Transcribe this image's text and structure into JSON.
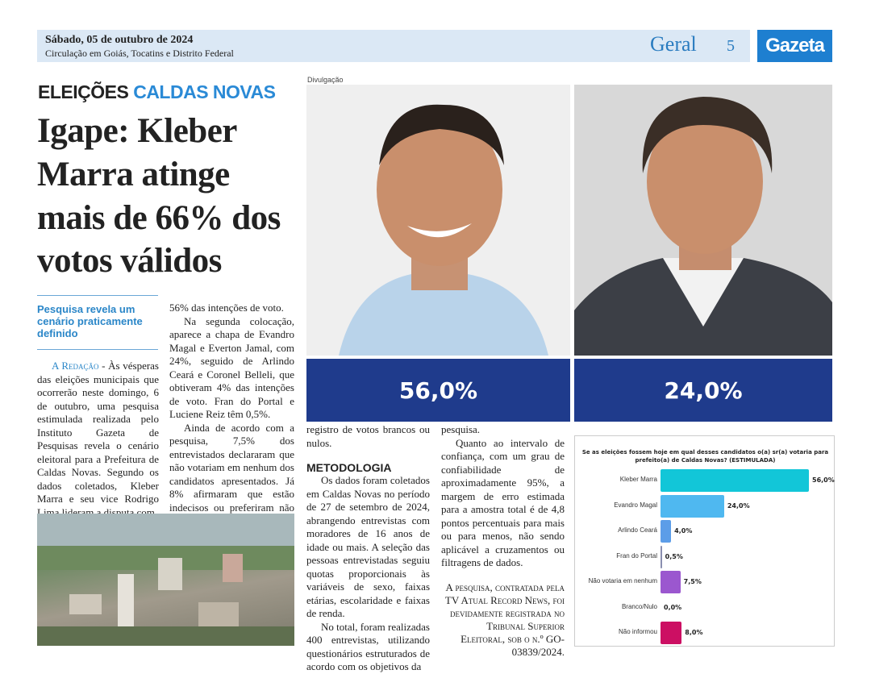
{
  "header": {
    "date": "Sábado, 05 de outubro de 2024",
    "circulation": "Circulação em Goiás, Tocatins e Distrito Federal",
    "section": "Geral",
    "page": "5",
    "logo": "Gazeta"
  },
  "article": {
    "kicker_a": "ELEIÇÕES",
    "kicker_b": "CALDAS NOVAS",
    "headline": "Igape: Kleber Marra atinge mais de 66% dos votos válidos",
    "photo_credit": "Divulgação",
    "percent_left": "56,0%",
    "percent_right": "24,0%",
    "subhead": "Pesquisa revela um cenário praticamente definido",
    "byline": "A Redação",
    "col1": " - Às vésperas das eleições municipais que ocorrerão neste domingo, 6 de outubro, uma pesquisa estimulada realizada pelo Instituto Gazeta de Pesquisas revela o cenário eleitoral para a Prefeitura de Caldas Novas. Segundo os dados coletados, Kleber Marra e seu vice Rodrigo Lima lideram a disputa com",
    "col2": [
      "56% das intenções de voto.",
      "Na segunda colocação, aparece a chapa de Evandro Magal e Everton Jamal, com 24%, seguido de Arlindo Ceará e Coronel Belleli, que obtiveram 4% das intenções de voto. Fran do Portal e Luciene Reiz têm 0,5%.",
      "Ainda de acordo com a pesquisa, 7,5% dos entrevistados declararam que não votariam em nenhum dos candidatos apresentados. Já 8% afirmaram que estão indecisos ou preferiram não responder à pesquisa. Não houve"
    ],
    "col3": [
      "registro de votos brancos ou nulos.",
      "METODOLOGIA",
      "Os dados foram coletados em Caldas Novas no período de 27 de setembro de 2024, abrangendo entrevistas com moradores de 16 anos de idade ou mais. A seleção das pessoas entrevistadas seguiu quotas proporcionais às variáveis de sexo, faixas etárias, escolaridade e faixas de renda.",
      "No total, foram realizadas 400 entrevistas, utilizando questionários estruturados de acordo com os objetivos da"
    ],
    "col4": [
      "pesquisa.",
      "Quanto ao intervalo de confiança, com um grau de confiabilidade de aproximadamente 95%, a margem de erro estimada para a amostra total é de 4,8 pontos percentuais para mais ou para menos, não sendo aplicável a cruzamentos ou filtragens de dados.",
      "A pesquisa, contratada pela TV Atual Record News, foi devidamente registrada no Tribunal Superior Eleitoral, sob o n.º GO-03839/2024."
    ]
  },
  "chart_data": {
    "type": "bar",
    "orientation": "horizontal",
    "title": "Se as eleições fossem hoje em qual desses candidatos o(a) sr(a) votaria para prefeito(a) de Caldas Novas? (ESTIMULADA)",
    "categories": [
      "Kleber Marra",
      "Evandro Magal",
      "Arlindo Ceará",
      "Fran do Portal",
      "Não votaria em nenhum",
      "Branco/Nulo",
      "Não informou"
    ],
    "values": [
      56.0,
      24.0,
      4.0,
      0.5,
      7.5,
      0.0,
      8.0
    ],
    "labels": [
      "56,0%",
      "24,0%",
      "4,0%",
      "0,5%",
      "7,5%",
      "0,0%",
      "8,0%"
    ],
    "colors": [
      "#12c6d8",
      "#4fb8f0",
      "#5c9de8",
      "#8a8fb0",
      "#9b57cf",
      "#888888",
      "#cc0f63"
    ],
    "xlim": [
      0,
      56
    ]
  }
}
